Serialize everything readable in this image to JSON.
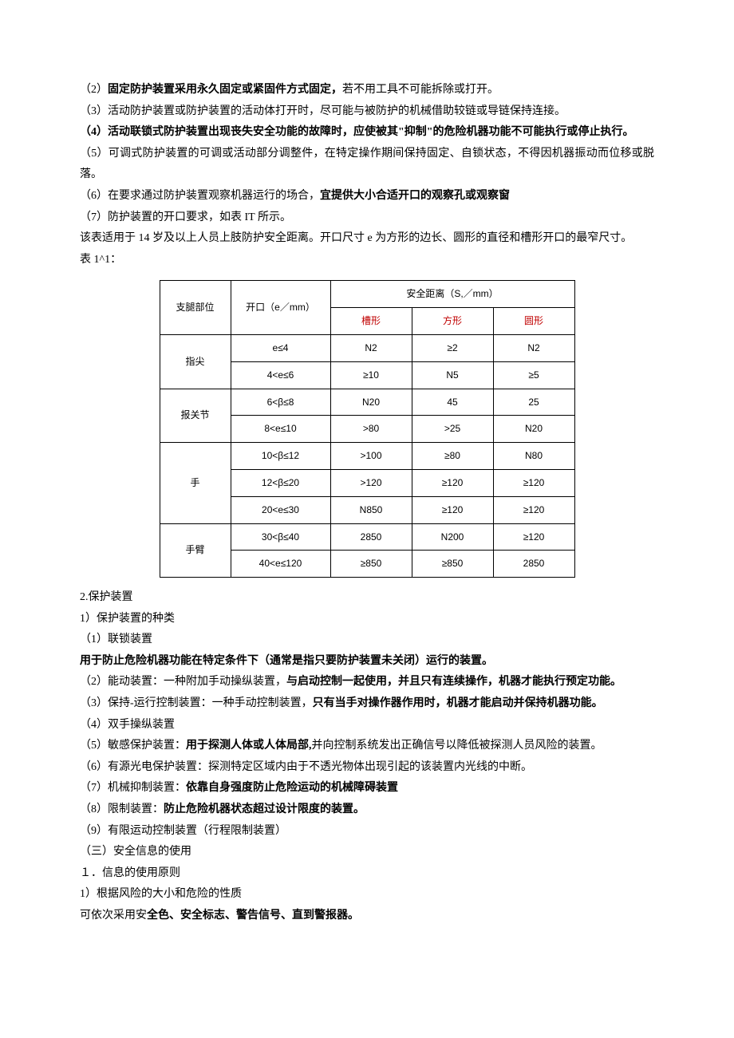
{
  "paragraphs": {
    "p2_a": "（2）",
    "p2_b": "固定防护装置采用永久固定或紧固件方式固定，",
    "p2_c": "若不用工具不可能拆除或打开。",
    "p3": "（3）活动防护装置或防护装置的活动体打开时，尽可能与被防护的机械借助较链或导链保持连接。",
    "p4": "（4）活动联锁式防护装置出现丧失安全功能的故障时，应使被其\"抑制\"的危险机器功能不可能执行或停止执行。",
    "p5": "（5）可调式防护装置的可调或活动部分调整件，在特定操作期间保持固定、自锁状态，不得因机器振动而位移或脱落。",
    "p6_a": "（6）在要求通过防护装置观察机器运行的场合，",
    "p6_b": "宜提供大小合适开口的观察孔或观察窗",
    "p7": "（7）防护装置的开口要求，如表 IT 所示。",
    "note": "该表适用于 14 岁及以上人员上肢防护安全距离。开口尺寸 e 为方形的边长、圆形的直径和槽形开口的最窄尺寸。",
    "table_label": "表 1^1："
  },
  "table": {
    "headers": {
      "part": "支腿部位",
      "opening": "开口（e／mm）",
      "distance": "安全距离（S,／mm）",
      "slot": "槽形",
      "square": "方形",
      "circle": "圆形"
    },
    "rows": [
      {
        "part": "指尖",
        "rowspan": 2,
        "cells": [
          "e≤4",
          "N2",
          "≥2",
          "N2"
        ]
      },
      {
        "cells": [
          "4<e≤6",
          "≥10",
          "N5",
          "≥5"
        ]
      },
      {
        "part": "报关节",
        "rowspan": 2,
        "cells": [
          "6<β≤8",
          "N20",
          "45",
          "25"
        ]
      },
      {
        "cells": [
          "8<e≤10",
          ">80",
          ">25",
          "N20"
        ]
      },
      {
        "part": "手",
        "rowspan": 3,
        "cells": [
          "10<β≤12",
          ">100",
          "≥80",
          "N80"
        ]
      },
      {
        "cells": [
          "12<β≤20",
          ">120",
          "≥120",
          "≥120"
        ]
      },
      {
        "cells": [
          "20<e≤30",
          "N850",
          "≥120",
          "≥120"
        ]
      },
      {
        "part": "手臂",
        "rowspan": 2,
        "cells": [
          "30<β≤40",
          "2850",
          "N200",
          "≥120"
        ]
      },
      {
        "cells": [
          "40<e≤120",
          "≥850",
          "≥850",
          "2850"
        ]
      }
    ]
  },
  "after": {
    "s2": "2.保护装置",
    "s2_1": "1）保护装置的种类",
    "s2_1_1": "（1）联锁装置",
    "s2_1_1b": "用于防止危险机器功能在特定条件下（通常是指只要防护装置未关闭）运行的装置。",
    "s2_1_2a": "（2）能动装置：一种附加手动操纵装置，",
    "s2_1_2b": "与启动控制一起使用，并且只有连续操作，机器才能执行预定功能。",
    "s2_1_3a": "（3）保持-运行控制装置：一种手动控制装置，",
    "s2_1_3b": "只有当手对操作器作用时，机器才能启动并保持机器功能。",
    "s2_1_4": "（4）双手操纵装置",
    "s2_1_5a": "（5）敏感保护装置：",
    "s2_1_5b": "用于探测人体或人体局部,",
    "s2_1_5c": "并向控制系统发出正确信号以降低被探测人员风险的装置。",
    "s2_1_6": "（6）有源光电保护装置：探测特定区域内由于不透光物体出现引起的该装置内光线的中断。",
    "s2_1_7a": "（7）机械抑制装置：",
    "s2_1_7b": "依靠自身强度防止危险运动的机械障碍装置",
    "s2_1_8a": "（8）限制装置：",
    "s2_1_8b": "防止危险机器状态超过设计限度的装置。",
    "s2_1_9": "（9）有限运动控制装置（行程限制装置）",
    "s3": "（三）安全信息的使用",
    "s3_1": "１．信息的使用原则",
    "s3_1_1": "1）根据风险的大小和危险的性质",
    "s3_1_2a": "可依次采用安",
    "s3_1_2b": "全色、安全标志、警告信号、直到警报器。"
  }
}
